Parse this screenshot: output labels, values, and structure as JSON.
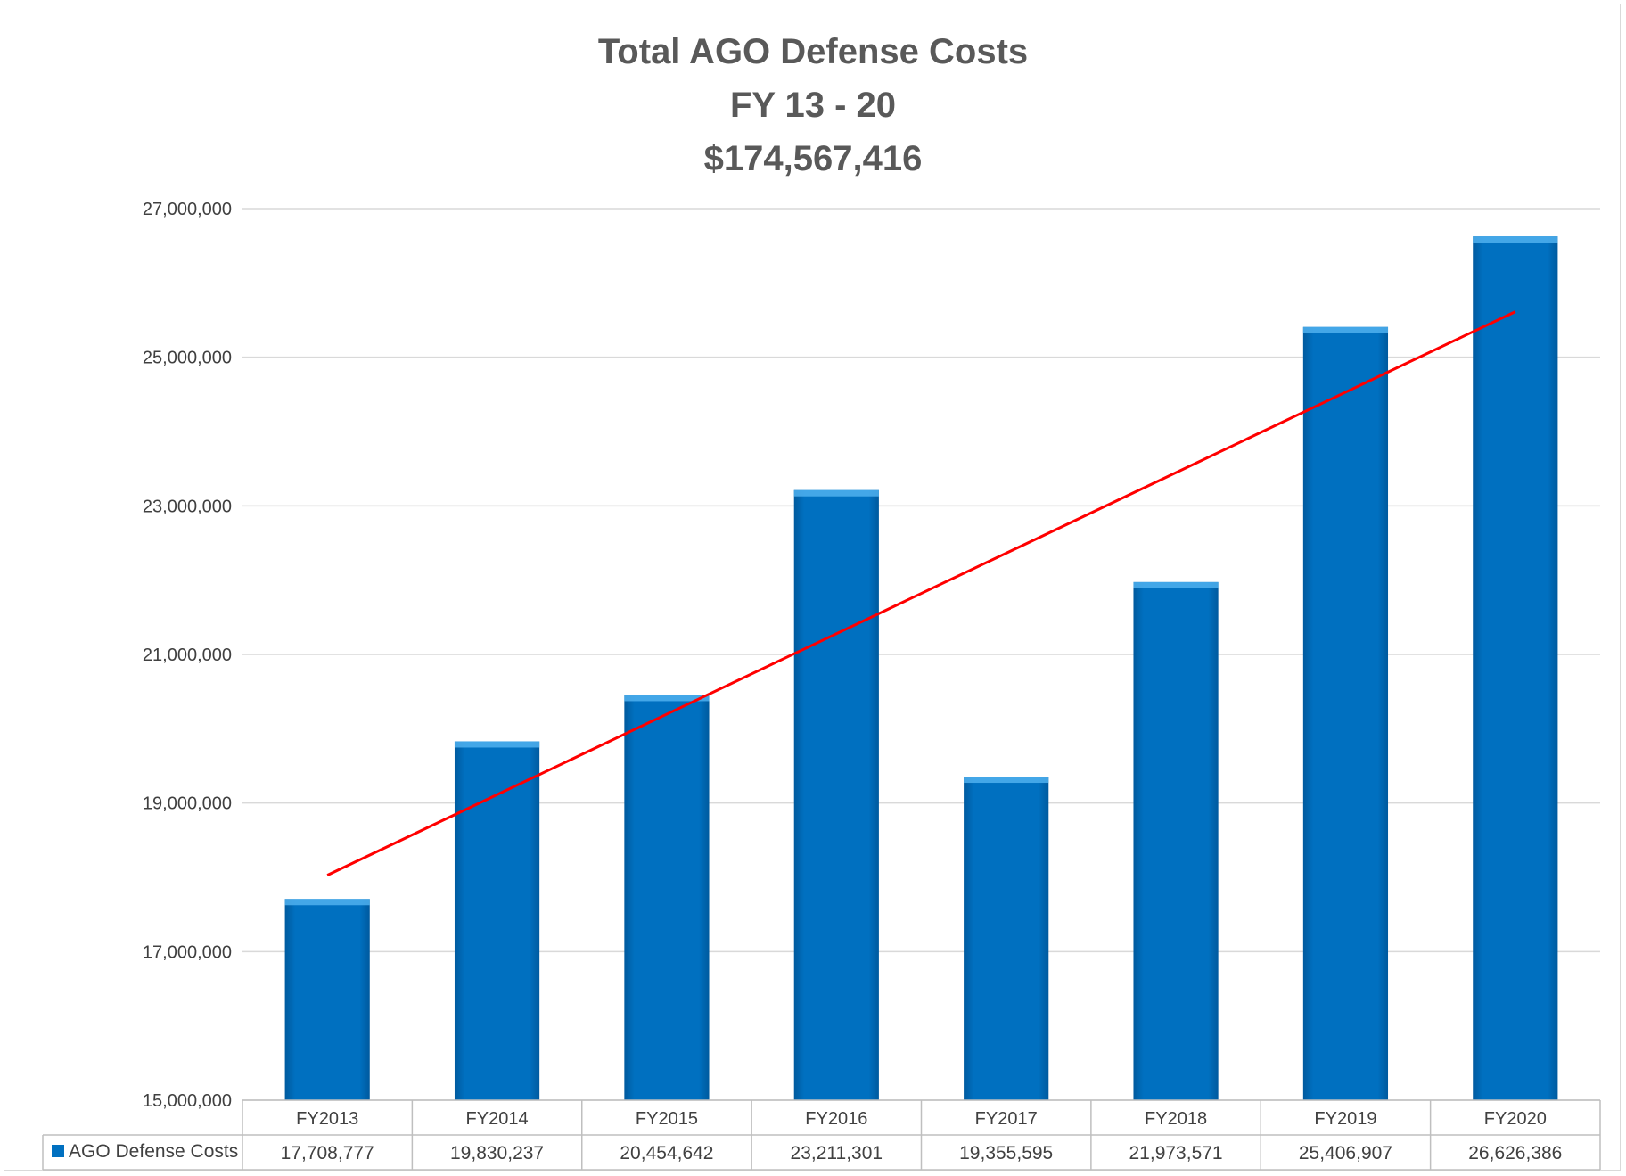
{
  "chart_data": {
    "type": "bar",
    "title_lines": [
      "Total AGO Defense Costs",
      "FY 13 - 20",
      "$174,567,416"
    ],
    "categories": [
      "FY2013",
      "FY2014",
      "FY2015",
      "FY2016",
      "FY2017",
      "FY2018",
      "FY2019",
      "FY2020"
    ],
    "series": [
      {
        "name": "AGO Defense Costs",
        "values": [
          17708777,
          19830237,
          20454642,
          23211301,
          19355595,
          21973571,
          25406907,
          26626386
        ],
        "value_labels": [
          "17,708,777",
          "19,830,237",
          "20,454,642",
          "23,211,301",
          "19,355,595",
          "21,973,571",
          "25,406,907",
          "26,626,386"
        ],
        "color": "#0070C0"
      }
    ],
    "trendline": {
      "type": "linear",
      "color": "#FF0000"
    },
    "ylim": [
      15000000,
      27000000
    ],
    "yticks": [
      15000000,
      17000000,
      19000000,
      21000000,
      23000000,
      25000000,
      27000000
    ],
    "ytick_labels": [
      "15,000,000",
      "17,000,000",
      "19,000,000",
      "21,000,000",
      "23,000,000",
      "25,000,000",
      "27,000,000"
    ],
    "grid": true,
    "legend": "data-table",
    "xlabel": "",
    "ylabel": ""
  }
}
